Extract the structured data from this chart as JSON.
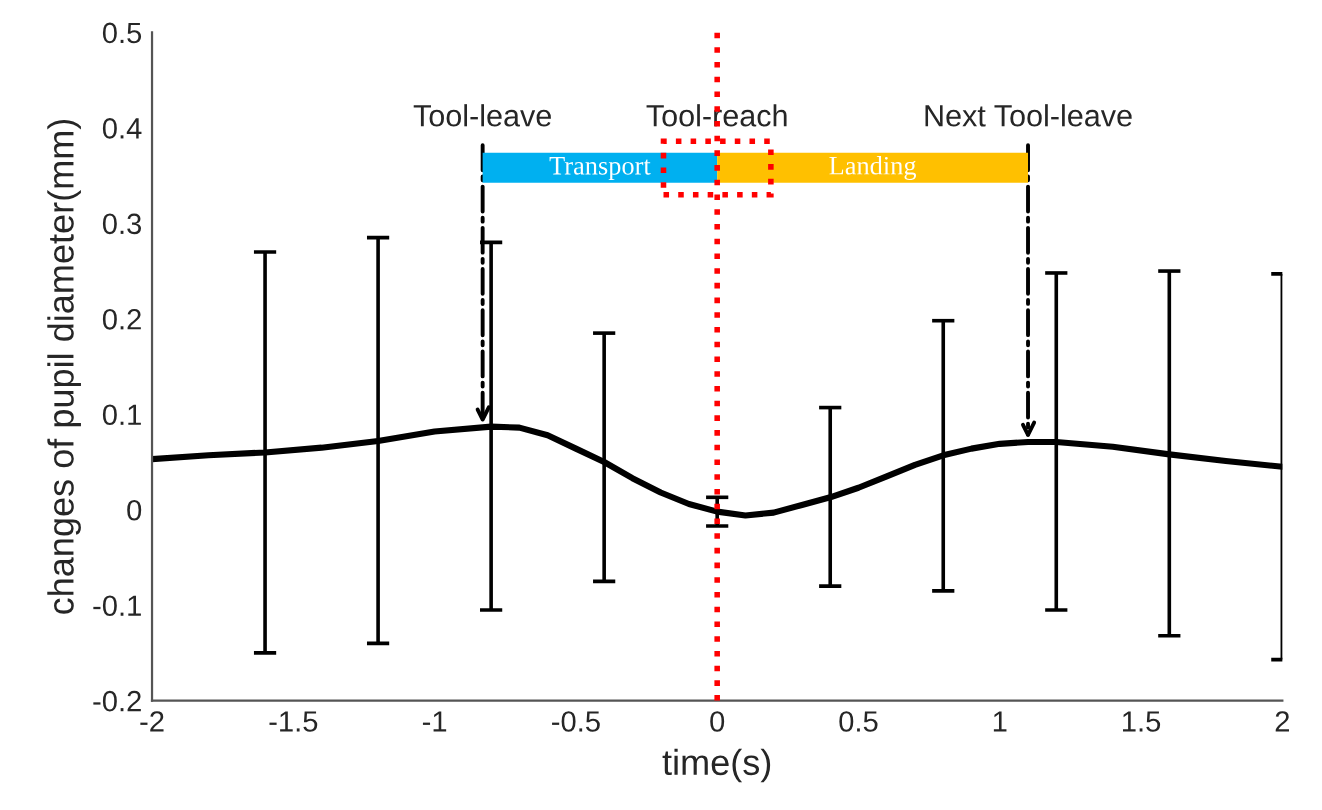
{
  "chart_data": {
    "type": "line",
    "xlabel": "time(s)",
    "ylabel": "changes of pupil diameter(mm)",
    "xlim": [
      -2,
      2
    ],
    "xticks": [
      -2,
      -1.5,
      -1,
      -0.5,
      0,
      0.5,
      1,
      1.5,
      2
    ],
    "ylim": [
      -0.2,
      0.5
    ],
    "yticks": [
      -0.2,
      -0.1,
      0,
      0.1,
      0.2,
      0.3,
      0.4,
      0.5
    ],
    "grid": false,
    "marker": "none",
    "line_style": "solid",
    "series": [
      {
        "color": "#000000",
        "x": [
          -2,
          -1.8,
          -1.6,
          -1.4,
          -1.2,
          -1.0,
          -0.8,
          -0.7,
          -0.6,
          -0.5,
          -0.4,
          -0.3,
          -0.2,
          -0.1,
          0,
          0.1,
          0.2,
          0.3,
          0.4,
          0.5,
          0.6,
          0.7,
          0.8,
          0.9,
          1.0,
          1.1,
          1.2,
          1.4,
          1.6,
          1.8,
          2.0
        ],
        "values": [
          0.053,
          0.057,
          0.06,
          0.065,
          0.072,
          0.082,
          0.087,
          0.086,
          0.078,
          0.064,
          0.05,
          0.033,
          0.018,
          0.006,
          -0.002,
          -0.006,
          -0.003,
          0.005,
          0.013,
          0.023,
          0.035,
          0.047,
          0.057,
          0.064,
          0.069,
          0.071,
          0.071,
          0.066,
          0.058,
          0.051,
          0.045
        ],
        "errors": [
          null,
          null,
          [
            -0.15,
            0.27
          ],
          null,
          [
            -0.14,
            0.285
          ],
          null,
          [
            -0.105,
            0.28
          ],
          null,
          null,
          null,
          [
            -0.075,
            0.185
          ],
          null,
          null,
          null,
          [
            -0.017,
            0.013
          ],
          null,
          null,
          null,
          [
            -0.08,
            0.107
          ],
          null,
          null,
          null,
          [
            -0.085,
            0.198
          ],
          null,
          null,
          null,
          [
            -0.105,
            0.248
          ],
          null,
          [
            -0.132,
            0.25
          ],
          null,
          [
            -0.157,
            0.247
          ]
        ]
      }
    ],
    "ref_lines": [
      {
        "axis": "x",
        "value": 0,
        "color": "#ff0000",
        "line_style": "dotted"
      }
    ],
    "bands": [
      {
        "axis": "x",
        "from": -0.83,
        "to": 0,
        "label": "Transport",
        "color": "#00b0f0"
      },
      {
        "axis": "x",
        "from": 0,
        "to": 1.1,
        "label": "Landing",
        "color": "#ffc000"
      }
    ],
    "annotations": [
      {
        "text": "Tool-leave",
        "x": -0.83,
        "y": 0.087
      },
      {
        "text": "Tool-reach",
        "x": 0
      },
      {
        "text": "Next Tool-leave",
        "x": 1.1,
        "y": 0.071
      }
    ]
  }
}
